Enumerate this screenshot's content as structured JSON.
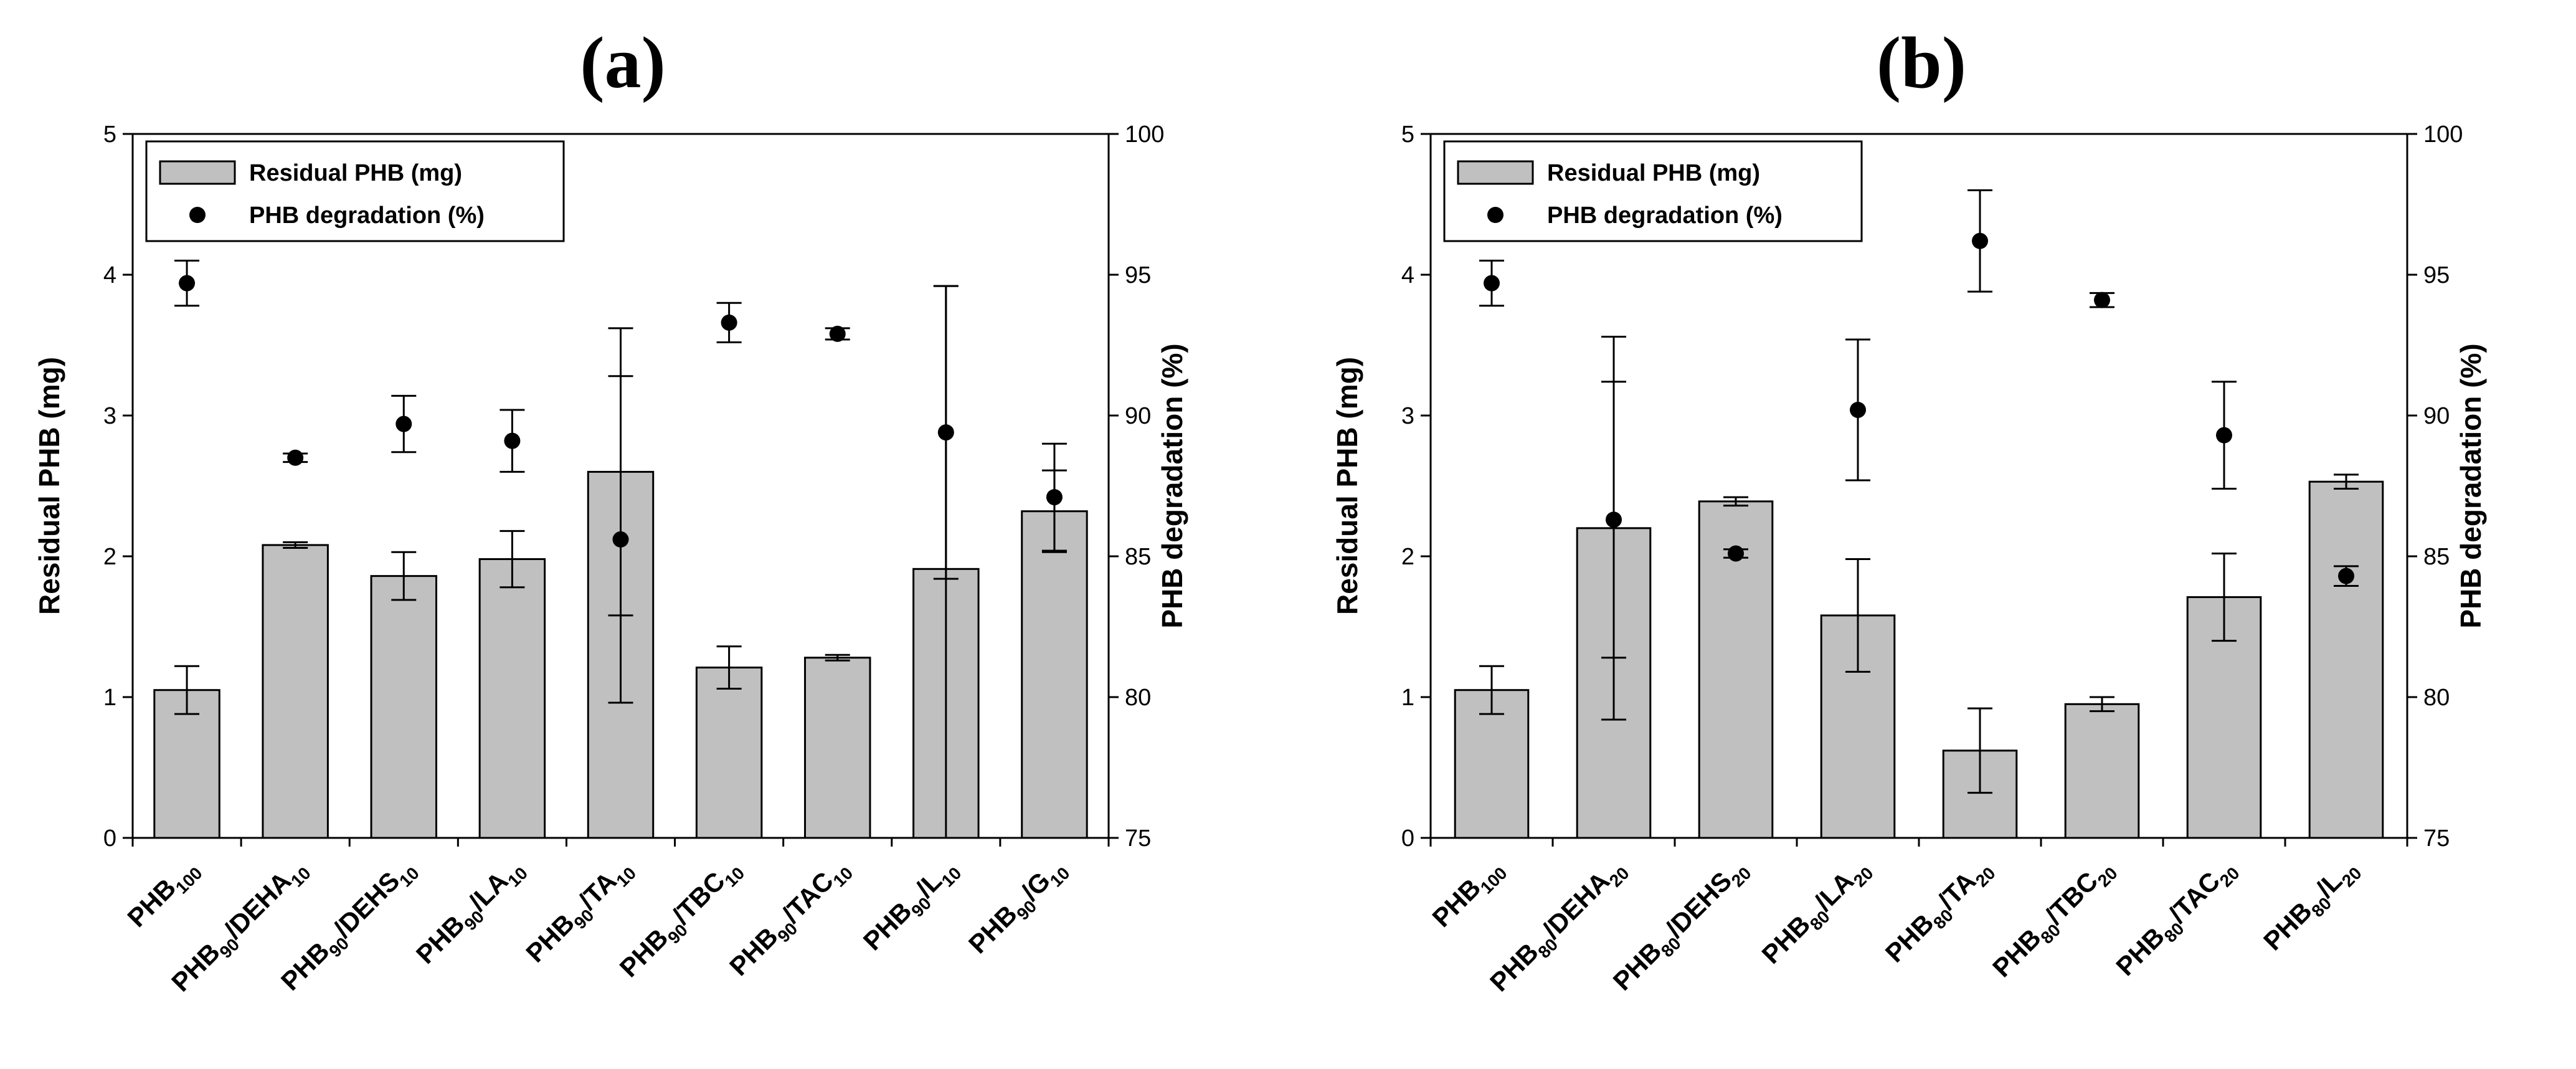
{
  "chart_data": [
    {
      "type": "bar+scatter",
      "panel_label": "(a)",
      "ylabel": "Residual PHB (mg)",
      "y2label": "PHB degradation (%)",
      "ylim": [
        0,
        5
      ],
      "y2lim": [
        75,
        100
      ],
      "y_ticks": [
        "0",
        "1",
        "2",
        "3",
        "4",
        "5"
      ],
      "y2_ticks": [
        "75",
        "80",
        "85",
        "90",
        "95",
        "100"
      ],
      "legend": {
        "position": "top-left",
        "bar_label": "Residual PHB (mg)",
        "dot_label": "PHB degradation (%)"
      },
      "categories": [
        {
          "base": "PHB",
          "sub1": "100",
          "mid": "",
          "sub2": ""
        },
        {
          "base": "PHB",
          "sub1": "90",
          "mid": "/DEHA",
          "sub2": "10"
        },
        {
          "base": "PHB",
          "sub1": "90",
          "mid": "/DEHS",
          "sub2": "10"
        },
        {
          "base": "PHB",
          "sub1": "90",
          "mid": "/LA",
          "sub2": "10"
        },
        {
          "base": "PHB",
          "sub1": "90",
          "mid": "/TA",
          "sub2": "10"
        },
        {
          "base": "PHB",
          "sub1": "90",
          "mid": "/TBC",
          "sub2": "10"
        },
        {
          "base": "PHB",
          "sub1": "90",
          "mid": "/TAC",
          "sub2": "10"
        },
        {
          "base": "PHB",
          "sub1": "90",
          "mid": "/L",
          "sub2": "10"
        },
        {
          "base": "PHB",
          "sub1": "90",
          "mid": "/G",
          "sub2": "10"
        }
      ],
      "series": [
        {
          "name": "Residual PHB (mg)",
          "axis": "left",
          "values": [
            1.05,
            2.08,
            1.86,
            1.98,
            2.6,
            1.21,
            1.28,
            1.91,
            2.32
          ],
          "errors": [
            0.17,
            0.02,
            0.17,
            0.2,
            1.02,
            0.15,
            0.02,
            2.01,
            0.29
          ]
        },
        {
          "name": "PHB degradation (%)",
          "axis": "right",
          "values": [
            94.7,
            88.5,
            89.7,
            89.1,
            85.6,
            93.3,
            92.9,
            89.4,
            87.1
          ],
          "errors": [
            0.8,
            0.15,
            1.0,
            1.1,
            5.8,
            0.7,
            0.2,
            5.2,
            1.9
          ]
        }
      ]
    },
    {
      "type": "bar+scatter",
      "panel_label": "(b)",
      "ylabel": "Residual PHB (mg)",
      "y2label": "PHB degradation (%)",
      "ylim": [
        0,
        5
      ],
      "y2lim": [
        75,
        100
      ],
      "y_ticks": [
        "0",
        "1",
        "2",
        "3",
        "4",
        "5"
      ],
      "y2_ticks": [
        "75",
        "80",
        "85",
        "90",
        "95",
        "100"
      ],
      "legend": {
        "position": "top-left",
        "bar_label": "Residual PHB (mg)",
        "dot_label": "PHB degradation (%)"
      },
      "categories": [
        {
          "base": "PHB",
          "sub1": "100",
          "mid": "",
          "sub2": ""
        },
        {
          "base": "PHB",
          "sub1": "80",
          "mid": "/DEHA",
          "sub2": "20"
        },
        {
          "base": "PHB",
          "sub1": "80",
          "mid": "/DEHS",
          "sub2": "20"
        },
        {
          "base": "PHB",
          "sub1": "80",
          "mid": "/LA",
          "sub2": "20"
        },
        {
          "base": "PHB",
          "sub1": "80",
          "mid": "/TA",
          "sub2": "20"
        },
        {
          "base": "PHB",
          "sub1": "80",
          "mid": "/TBC",
          "sub2": "20"
        },
        {
          "base": "PHB",
          "sub1": "80",
          "mid": "/TAC",
          "sub2": "20"
        },
        {
          "base": "PHB",
          "sub1": "80",
          "mid": "/L",
          "sub2": "20"
        }
      ],
      "series": [
        {
          "name": "Residual PHB (mg)",
          "axis": "left",
          "values": [
            1.05,
            2.2,
            2.39,
            1.58,
            0.62,
            0.95,
            1.71,
            2.53
          ],
          "errors": [
            0.17,
            1.36,
            0.03,
            0.4,
            0.3,
            0.05,
            0.31,
            0.05
          ]
        },
        {
          "name": "PHB degradation (%)",
          "axis": "right",
          "values": [
            94.7,
            86.3,
            85.1,
            90.2,
            96.2,
            94.1,
            89.3,
            84.3
          ],
          "errors": [
            0.8,
            4.9,
            0.15,
            2.5,
            1.8,
            0.25,
            1.9,
            0.35
          ]
        }
      ]
    }
  ]
}
